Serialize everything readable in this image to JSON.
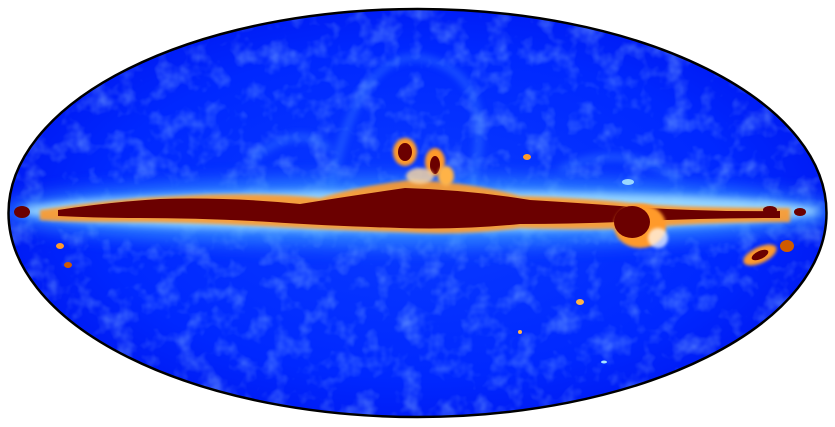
{
  "map": {
    "projection": "mollweide",
    "colormap": [
      "#0000ff",
      "#1e90ff",
      "#9ad6ff",
      "#ffffff",
      "#ffb347",
      "#d05a00",
      "#6b0000"
    ],
    "background_color": "#0022ff",
    "outline_color": "#000000"
  }
}
